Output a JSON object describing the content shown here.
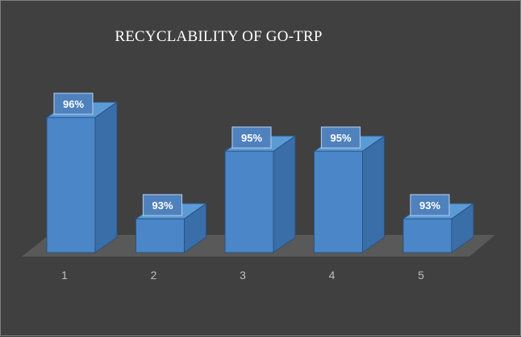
{
  "chart_data": {
    "type": "bar",
    "title": "RECYCLABILITY OF GO-TRP",
    "categories": [
      "1",
      "2",
      "3",
      "4",
      "5"
    ],
    "values": [
      96,
      93,
      95,
      95,
      93
    ],
    "data_labels": [
      "96%",
      "93%",
      "95%",
      "95%",
      "93%"
    ],
    "xlabel": "",
    "ylabel": "",
    "ylim": [
      92,
      97
    ],
    "style": "3d-column",
    "grid": false,
    "legend": "none",
    "colors": {
      "background": "#404040",
      "bar_front": "#4a86c8",
      "bar_side": "#3a6ea8",
      "bar_top": "#5b9bd5",
      "floor": "#595959",
      "label_box": "#4f81bd",
      "tick_text": "#bfbfbf",
      "title_text": "#ffffff"
    }
  }
}
